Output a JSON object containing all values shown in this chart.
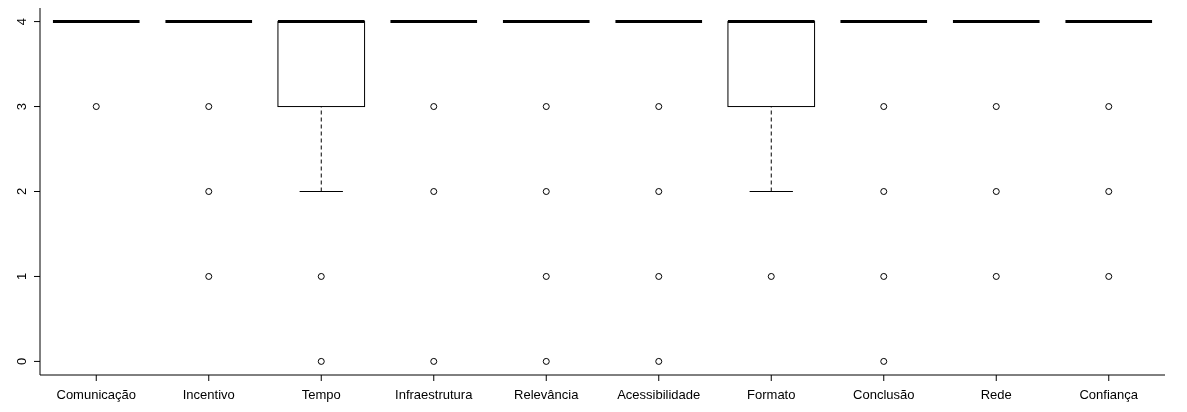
{
  "chart_data": {
    "type": "box",
    "categories": [
      "Comunicação",
      "Incentivo",
      "Tempo",
      "Infraestrutura",
      "Relevância",
      "Acessibilidade",
      "Formato",
      "Conclusão",
      "Rede",
      "Confiança"
    ],
    "boxes": [
      {
        "low": 4,
        "q1": 4,
        "median": 4,
        "q3": 4,
        "high": 4,
        "outliers": [
          3
        ]
      },
      {
        "low": 4,
        "q1": 4,
        "median": 4,
        "q3": 4,
        "high": 4,
        "outliers": [
          3,
          2,
          1
        ]
      },
      {
        "low": 2,
        "q1": 3,
        "median": 4,
        "q3": 4,
        "high": 4,
        "outliers": [
          1,
          0
        ]
      },
      {
        "low": 4,
        "q1": 4,
        "median": 4,
        "q3": 4,
        "high": 4,
        "outliers": [
          3,
          2,
          0
        ]
      },
      {
        "low": 4,
        "q1": 4,
        "median": 4,
        "q3": 4,
        "high": 4,
        "outliers": [
          3,
          2,
          1,
          0
        ]
      },
      {
        "low": 4,
        "q1": 4,
        "median": 4,
        "q3": 4,
        "high": 4,
        "outliers": [
          3,
          2,
          1,
          0
        ]
      },
      {
        "low": 2,
        "q1": 3,
        "median": 4,
        "q3": 4,
        "high": 4,
        "outliers": [
          1
        ]
      },
      {
        "low": 4,
        "q1": 4,
        "median": 4,
        "q3": 4,
        "high": 4,
        "outliers": [
          3,
          2,
          1,
          0
        ]
      },
      {
        "low": 4,
        "q1": 4,
        "median": 4,
        "q3": 4,
        "high": 4,
        "outliers": [
          3,
          2,
          1
        ]
      },
      {
        "low": 4,
        "q1": 4,
        "median": 4,
        "q3": 4,
        "high": 4,
        "outliers": [
          3,
          2,
          1
        ]
      }
    ],
    "ylim": [
      -0.16,
      4.16
    ],
    "yticks": [
      0,
      1,
      2,
      3,
      4
    ],
    "grid": false,
    "marker": "circle"
  }
}
